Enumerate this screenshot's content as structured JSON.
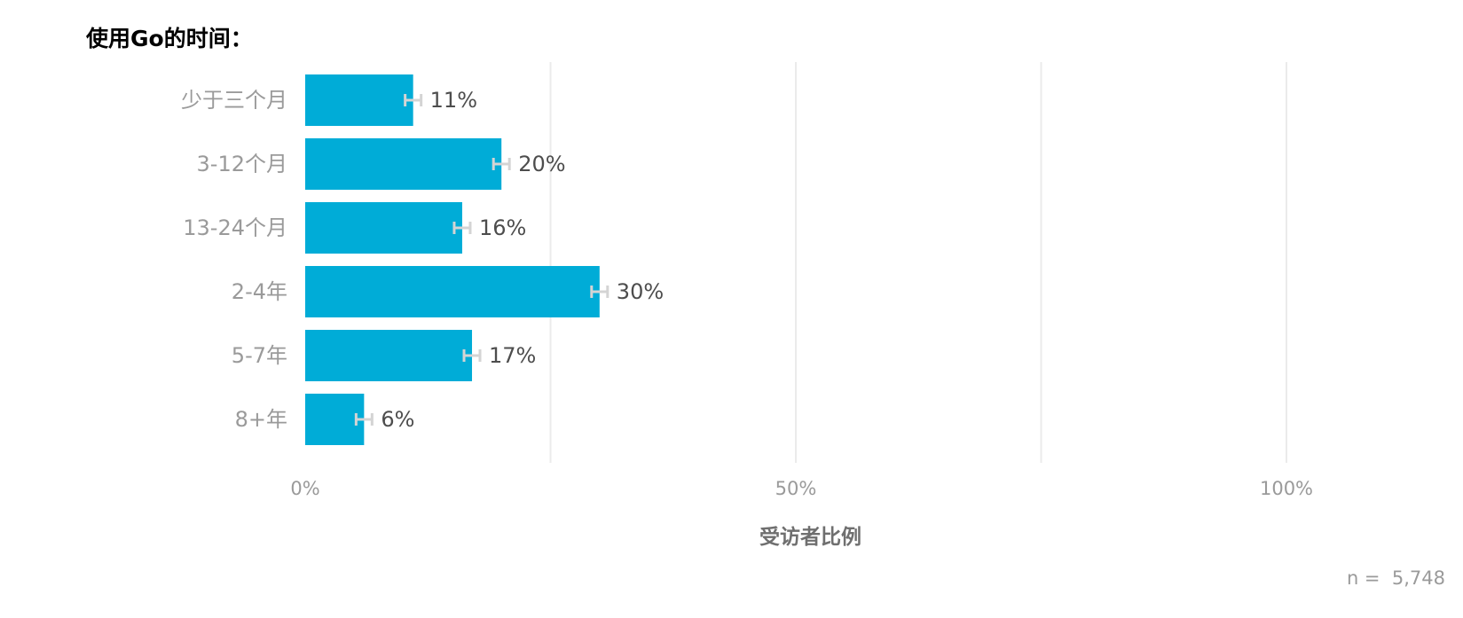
{
  "chart_data": {
    "type": "bar",
    "orientation": "horizontal",
    "title": "使用Go的时间：",
    "xlabel": "受访者比例",
    "ylabel": "",
    "categories": [
      "少于三个月",
      "3-12个月",
      "13-24个月",
      "2-4年",
      "5-7年",
      "8+年"
    ],
    "values": [
      11,
      20,
      16,
      30,
      17,
      6
    ],
    "data_labels": [
      "11%",
      "20%",
      "16%",
      "30%",
      "17%",
      "6%"
    ],
    "error_bars": true,
    "xlim": [
      0,
      100
    ],
    "x_ticks": [
      {
        "value": 0,
        "label": "0%"
      },
      {
        "value": 50,
        "label": "50%"
      },
      {
        "value": 100,
        "label": "100%"
      }
    ],
    "grid": true,
    "legend": "none",
    "bar_color": "#00acd7",
    "error_bar_color": "#d4d4d4",
    "grid_color": "#ebebeb",
    "tick_label_color": "#9a9a9a",
    "value_label_color": "#4d4d4d"
  },
  "sample_note": "n =  5,748"
}
